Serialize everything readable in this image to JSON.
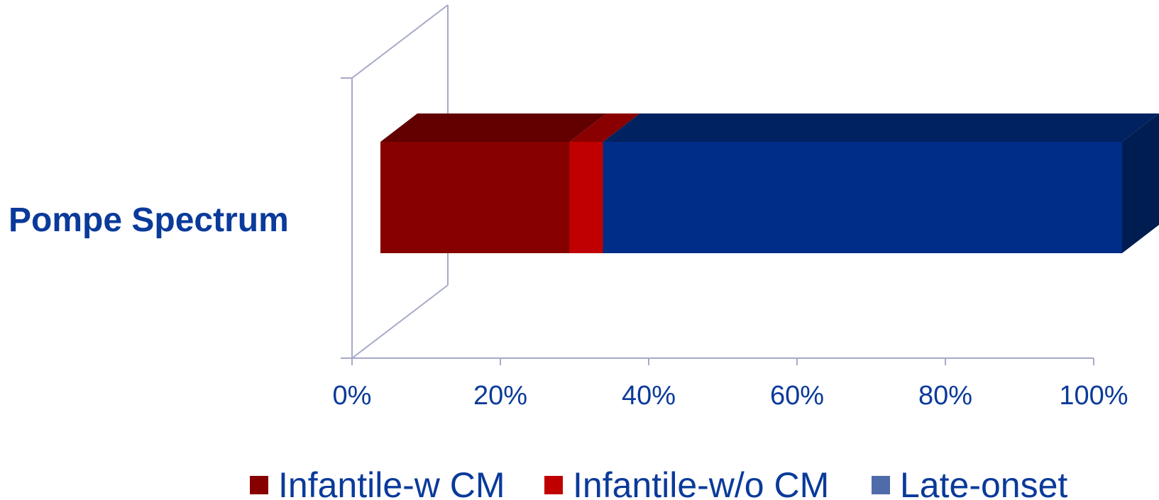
{
  "chart_data": {
    "type": "bar",
    "orientation": "horizontal",
    "stacked": "percent",
    "style": "3d",
    "categories": [
      "Pompe Spectrum"
    ],
    "series": [
      {
        "name": "Infantile-w CM",
        "values": [
          25.5
        ],
        "color": "#870000",
        "top_color": "#620000"
      },
      {
        "name": "Infantile-w/o CM",
        "values": [
          4.5
        ],
        "color": "#c00000",
        "top_color": "#8a0000"
      },
      {
        "name": "Late-onset",
        "values": [
          70
        ],
        "color": "#002d87",
        "top_color": "#002260",
        "side_color": "#001d52",
        "legend_color": "#4f6baa"
      }
    ],
    "xlim": [
      0,
      100
    ],
    "xticks": [
      0,
      20,
      40,
      60,
      80,
      100
    ],
    "xtick_labels": [
      "0%",
      "20%",
      "40%",
      "60%",
      "80%",
      "100%"
    ],
    "legend_position": "bottom",
    "grid": false,
    "axis_color": "#a6a9c8",
    "text_color": "#0a3a9a"
  }
}
